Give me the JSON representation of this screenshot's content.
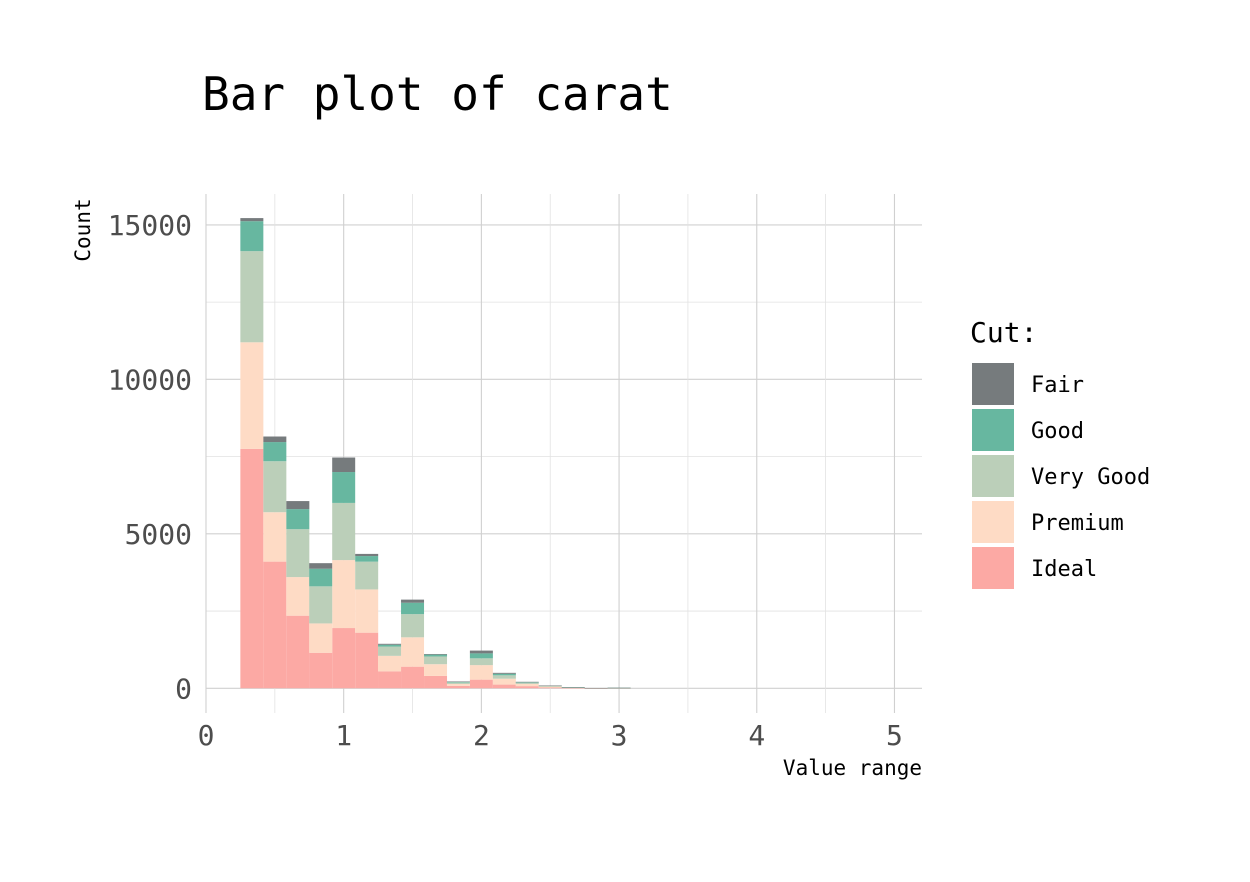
{
  "chart_data": {
    "type": "bar",
    "stacked": true,
    "title": "Bar plot of carat",
    "xlabel": "Value range",
    "ylabel": "Count",
    "xlim": [
      0,
      5.2
    ],
    "ylim": [
      -800,
      16000
    ],
    "xticks": [
      0,
      1,
      2,
      3,
      4,
      5
    ],
    "xtick_labels": [
      "0",
      "1",
      "2",
      "3",
      "4",
      "5"
    ],
    "yticks": [
      0,
      5000,
      10000,
      15000
    ],
    "ytick_labels": [
      "0",
      "5000",
      "10000",
      "15000"
    ],
    "grid": true,
    "bin_width": 0.167,
    "bin_centers": [
      0.333,
      0.5,
      0.667,
      0.833,
      1.0,
      1.167,
      1.333,
      1.5,
      1.667,
      1.833,
      2.0,
      2.167,
      2.333,
      2.5,
      2.667,
      2.833,
      3.0
    ],
    "legend": {
      "title": "Cut:",
      "position": "right"
    },
    "series": [
      {
        "name": "Ideal",
        "color": "#fca9a4",
        "values": [
          7750,
          4100,
          2350,
          1150,
          1950,
          1800,
          550,
          700,
          400,
          80,
          280,
          120,
          70,
          25,
          10,
          3,
          5
        ]
      },
      {
        "name": "Premium",
        "color": "#fedbc5",
        "values": [
          3450,
          1600,
          1250,
          950,
          2200,
          1400,
          500,
          950,
          380,
          60,
          470,
          190,
          70,
          30,
          12,
          4,
          6
        ]
      },
      {
        "name": "Very Good",
        "color": "#bbcfb9",
        "values": [
          2950,
          1650,
          1550,
          1200,
          1850,
          900,
          300,
          750,
          250,
          50,
          220,
          110,
          40,
          20,
          8,
          2,
          4
        ]
      },
      {
        "name": "Good",
        "color": "#67b7a0",
        "values": [
          970,
          620,
          650,
          570,
          1000,
          180,
          60,
          370,
          60,
          20,
          160,
          50,
          20,
          10,
          4,
          1,
          2
        ]
      },
      {
        "name": "Fair",
        "color": "#767b7d",
        "values": [
          100,
          180,
          260,
          180,
          470,
          70,
          30,
          100,
          20,
          10,
          90,
          30,
          10,
          5,
          2,
          1,
          1
        ]
      }
    ]
  }
}
